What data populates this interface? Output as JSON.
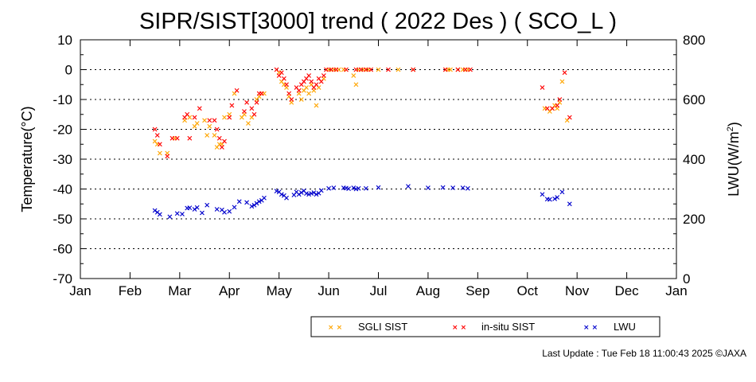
{
  "chart_data": {
    "type": "scatter",
    "title": "SIPR/SIST[3000] trend ( 2022 Des ) ( SCO_L )",
    "ylabel": "Temperature(°C)",
    "y2label_main": "LWU(W/m",
    "y2label_sup": "2",
    "y2label_end": ")",
    "ylim": [
      -70,
      10
    ],
    "y2lim": [
      0,
      800
    ],
    "xlim": [
      0,
      12
    ],
    "grid": "horizontal-dotted",
    "legend_position": "bottom-right",
    "x_ticks": [
      {
        "v": 0,
        "label": "Jan"
      },
      {
        "v": 1,
        "label": "Feb"
      },
      {
        "v": 2,
        "label": "Mar"
      },
      {
        "v": 3,
        "label": "Apr"
      },
      {
        "v": 4,
        "label": "May"
      },
      {
        "v": 5,
        "label": "Jun"
      },
      {
        "v": 6,
        "label": "Jul"
      },
      {
        "v": 7,
        "label": "Aug"
      },
      {
        "v": 8,
        "label": "Sep"
      },
      {
        "v": 9,
        "label": "Oct"
      },
      {
        "v": 10,
        "label": "Nov"
      },
      {
        "v": 11,
        "label": "Dec"
      },
      {
        "v": 12,
        "label": "Jan"
      }
    ],
    "y_ticks": [
      10,
      0,
      -10,
      -20,
      -30,
      -40,
      -50,
      -60,
      -70
    ],
    "y2_ticks": [
      800,
      600,
      400,
      200,
      0
    ],
    "series": [
      {
        "name": "SGLI SIST",
        "axis": "left",
        "color": "#ffa500",
        "points": [
          [
            1.5,
            -24
          ],
          [
            1.55,
            -25
          ],
          [
            1.6,
            -28
          ],
          [
            1.75,
            -28
          ],
          [
            1.9,
            -23
          ],
          [
            2.1,
            -17
          ],
          [
            2.2,
            -16
          ],
          [
            2.3,
            -19
          ],
          [
            2.35,
            -18
          ],
          [
            2.5,
            -17
          ],
          [
            2.55,
            -22
          ],
          [
            2.6,
            -19
          ],
          [
            2.7,
            -22
          ],
          [
            2.75,
            -26
          ],
          [
            2.8,
            -25
          ],
          [
            2.85,
            -25
          ],
          [
            2.9,
            -16
          ],
          [
            3.0,
            -15
          ],
          [
            3.1,
            -8
          ],
          [
            3.25,
            -16
          ],
          [
            3.3,
            -15
          ],
          [
            3.38,
            -18
          ],
          [
            3.45,
            -16
          ],
          [
            3.55,
            -10
          ],
          [
            3.6,
            -9
          ],
          [
            3.7,
            -8
          ],
          [
            4.0,
            -1
          ],
          [
            4.05,
            -4
          ],
          [
            4.1,
            -5
          ],
          [
            4.15,
            -6
          ],
          [
            4.2,
            -9
          ],
          [
            4.25,
            -11
          ],
          [
            4.4,
            -8
          ],
          [
            4.45,
            -10
          ],
          [
            4.5,
            -7
          ],
          [
            4.55,
            -6
          ],
          [
            4.6,
            -8
          ],
          [
            4.65,
            -5
          ],
          [
            4.7,
            -7
          ],
          [
            4.75,
            -12
          ],
          [
            4.8,
            -6
          ],
          [
            4.9,
            -3
          ],
          [
            5.0,
            0
          ],
          [
            5.1,
            0
          ],
          [
            5.2,
            0
          ],
          [
            5.3,
            0
          ],
          [
            5.5,
            -2
          ],
          [
            5.55,
            -5
          ],
          [
            5.6,
            0
          ],
          [
            5.7,
            0
          ],
          [
            5.8,
            0
          ],
          [
            6.0,
            0
          ],
          [
            6.4,
            0
          ],
          [
            6.7,
            0
          ],
          [
            7.4,
            0
          ],
          [
            7.45,
            0
          ],
          [
            7.6,
            0
          ],
          [
            7.7,
            0
          ],
          [
            7.8,
            0
          ],
          [
            9.35,
            -13
          ],
          [
            9.45,
            -14
          ],
          [
            9.5,
            -13
          ],
          [
            9.55,
            -12
          ],
          [
            9.6,
            -13
          ],
          [
            9.65,
            -11
          ],
          [
            9.7,
            -4
          ],
          [
            9.8,
            -17
          ]
        ]
      },
      {
        "name": "in-situ SIST",
        "axis": "left",
        "color": "#ff0000",
        "points": [
          [
            1.5,
            -20
          ],
          [
            1.55,
            -22
          ],
          [
            1.6,
            -25
          ],
          [
            1.75,
            -29
          ],
          [
            1.85,
            -23
          ],
          [
            1.95,
            -23
          ],
          [
            2.1,
            -16
          ],
          [
            2.15,
            -15
          ],
          [
            2.2,
            -23
          ],
          [
            2.3,
            -16
          ],
          [
            2.4,
            -13
          ],
          [
            2.6,
            -17
          ],
          [
            2.7,
            -17
          ],
          [
            2.75,
            -20
          ],
          [
            2.8,
            -23
          ],
          [
            2.85,
            -26
          ],
          [
            2.9,
            -24
          ],
          [
            3.0,
            -16
          ],
          [
            3.05,
            -12
          ],
          [
            3.15,
            -7
          ],
          [
            3.3,
            -14
          ],
          [
            3.35,
            -11
          ],
          [
            3.45,
            -13
          ],
          [
            3.5,
            -15
          ],
          [
            3.55,
            -11
          ],
          [
            3.6,
            -8
          ],
          [
            3.65,
            -8
          ],
          [
            3.95,
            0
          ],
          [
            4.0,
            -2
          ],
          [
            4.05,
            -1
          ],
          [
            4.1,
            -3
          ],
          [
            4.15,
            -5
          ],
          [
            4.2,
            -8
          ],
          [
            4.25,
            -10
          ],
          [
            4.35,
            -6
          ],
          [
            4.4,
            -7
          ],
          [
            4.45,
            -5
          ],
          [
            4.5,
            -4
          ],
          [
            4.55,
            -3
          ],
          [
            4.6,
            -2
          ],
          [
            4.65,
            -4
          ],
          [
            4.7,
            -6
          ],
          [
            4.75,
            -5
          ],
          [
            4.8,
            -3
          ],
          [
            4.85,
            -4
          ],
          [
            4.9,
            -2
          ],
          [
            4.95,
            0
          ],
          [
            5.05,
            0
          ],
          [
            5.15,
            0
          ],
          [
            5.35,
            0
          ],
          [
            5.55,
            0
          ],
          [
            5.65,
            0
          ],
          [
            5.75,
            0
          ],
          [
            5.85,
            0
          ],
          [
            6.2,
            0
          ],
          [
            6.7,
            0
          ],
          [
            7.35,
            0
          ],
          [
            7.6,
            0
          ],
          [
            7.75,
            0
          ],
          [
            7.85,
            0
          ],
          [
            9.3,
            -6
          ],
          [
            9.4,
            -13
          ],
          [
            9.5,
            -13
          ],
          [
            9.6,
            -12
          ],
          [
            9.65,
            -10
          ],
          [
            9.75,
            -1
          ],
          [
            9.85,
            -16
          ]
        ]
      },
      {
        "name": "LWU",
        "axis": "right",
        "color": "#0000cc",
        "points": [
          [
            1.5,
            228
          ],
          [
            1.55,
            222
          ],
          [
            1.6,
            215
          ],
          [
            1.8,
            207
          ],
          [
            1.95,
            218
          ],
          [
            2.05,
            216
          ],
          [
            2.15,
            236
          ],
          [
            2.2,
            237
          ],
          [
            2.3,
            232
          ],
          [
            2.35,
            238
          ],
          [
            2.45,
            220
          ],
          [
            2.55,
            246
          ],
          [
            2.75,
            232
          ],
          [
            2.85,
            230
          ],
          [
            2.9,
            222
          ],
          [
            3.0,
            225
          ],
          [
            3.1,
            239
          ],
          [
            3.2,
            258
          ],
          [
            3.35,
            255
          ],
          [
            3.45,
            242
          ],
          [
            3.5,
            246
          ],
          [
            3.55,
            252
          ],
          [
            3.6,
            258
          ],
          [
            3.65,
            262
          ],
          [
            3.7,
            270
          ],
          [
            3.95,
            293
          ],
          [
            4.0,
            290
          ],
          [
            4.05,
            282
          ],
          [
            4.1,
            278
          ],
          [
            4.15,
            270
          ],
          [
            4.3,
            280
          ],
          [
            4.35,
            290
          ],
          [
            4.4,
            282
          ],
          [
            4.45,
            288
          ],
          [
            4.5,
            294
          ],
          [
            4.55,
            285
          ],
          [
            4.6,
            282
          ],
          [
            4.65,
            285
          ],
          [
            4.7,
            288
          ],
          [
            4.75,
            282
          ],
          [
            4.8,
            286
          ],
          [
            4.85,
            295
          ],
          [
            5.0,
            302
          ],
          [
            5.1,
            304
          ],
          [
            5.3,
            304
          ],
          [
            5.35,
            303
          ],
          [
            5.4,
            301
          ],
          [
            5.5,
            304
          ],
          [
            5.55,
            300
          ],
          [
            5.6,
            302
          ],
          [
            5.75,
            302
          ],
          [
            6.0,
            305
          ],
          [
            6.6,
            309
          ],
          [
            7.0,
            304
          ],
          [
            7.3,
            305
          ],
          [
            7.5,
            304
          ],
          [
            7.7,
            304
          ],
          [
            7.8,
            302
          ],
          [
            9.3,
            282
          ],
          [
            9.4,
            266
          ],
          [
            9.45,
            265
          ],
          [
            9.55,
            267
          ],
          [
            9.6,
            272
          ],
          [
            9.7,
            290
          ],
          [
            9.85,
            250
          ]
        ]
      }
    ]
  },
  "footer": {
    "text": "Last Update : Tue Feb 18 11:00:43 2025  ©JAXA"
  }
}
